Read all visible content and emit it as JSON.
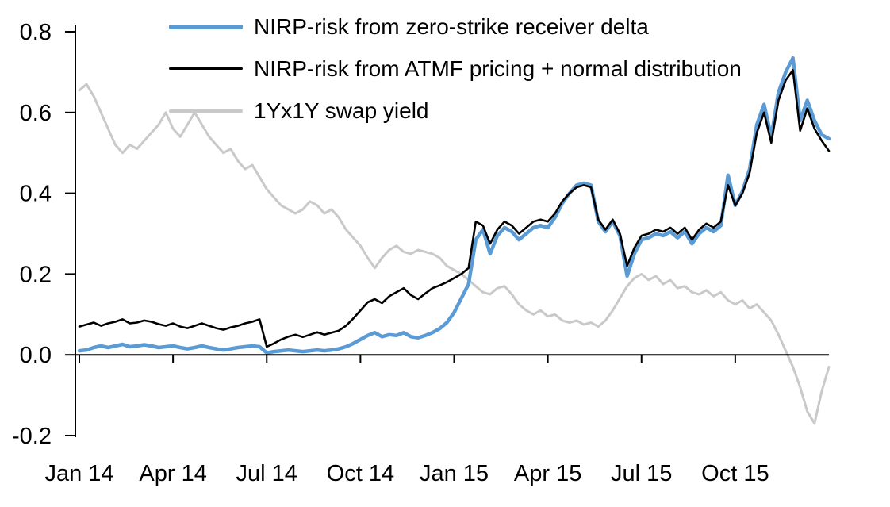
{
  "chart_data": {
    "type": "line",
    "title": "",
    "xlabel": "",
    "ylabel": "",
    "grid": false,
    "legend_position": "top-left",
    "xlim": [
      2014.0,
      2016.0
    ],
    "ylim": [
      -0.2,
      0.8
    ],
    "x_tick_labels": [
      "Jan 14",
      "Apr 14",
      "Jul 14",
      "Oct 14",
      "Jan 15",
      "Apr 15",
      "Jul 15",
      "Oct 15"
    ],
    "x_tick_positions": [
      2014.0,
      2014.25,
      2014.5,
      2014.75,
      2015.0,
      2015.25,
      2015.5,
      2015.75
    ],
    "y_tick_labels": [
      "-0.2",
      "0.0",
      "0.2",
      "0.4",
      "0.6",
      "0.8"
    ],
    "y_tick_values": [
      -0.2,
      0.0,
      0.2,
      0.4,
      0.6,
      0.8
    ],
    "x_sampling": {
      "start": 2014.0,
      "end": 2016.0,
      "points": 105,
      "spacing": "weekly"
    },
    "draw_order": [
      2,
      0,
      1
    ],
    "series": [
      {
        "id": "zero-strike-delta",
        "name": "NIRP-risk from zero-strike receiver delta",
        "color": "#5B9BD5",
        "stroke_width": 4.5,
        "legend_weight": 6,
        "values": [
          0.01,
          0.012,
          0.018,
          0.022,
          0.018,
          0.022,
          0.026,
          0.02,
          0.022,
          0.025,
          0.022,
          0.018,
          0.02,
          0.022,
          0.018,
          0.015,
          0.018,
          0.022,
          0.018,
          0.015,
          0.012,
          0.015,
          0.018,
          0.02,
          0.022,
          0.02,
          0.005,
          0.008,
          0.01,
          0.012,
          0.01,
          0.008,
          0.01,
          0.012,
          0.01,
          0.012,
          0.015,
          0.02,
          0.028,
          0.038,
          0.048,
          0.055,
          0.045,
          0.05,
          0.048,
          0.055,
          0.045,
          0.042,
          0.048,
          0.055,
          0.065,
          0.08,
          0.105,
          0.14,
          0.175,
          0.285,
          0.31,
          0.25,
          0.295,
          0.315,
          0.305,
          0.285,
          0.3,
          0.315,
          0.32,
          0.315,
          0.34,
          0.375,
          0.4,
          0.42,
          0.425,
          0.42,
          0.33,
          0.305,
          0.33,
          0.295,
          0.195,
          0.25,
          0.285,
          0.29,
          0.3,
          0.295,
          0.305,
          0.29,
          0.305,
          0.275,
          0.3,
          0.315,
          0.305,
          0.32,
          0.445,
          0.37,
          0.405,
          0.46,
          0.57,
          0.62,
          0.54,
          0.65,
          0.7,
          0.735,
          0.58,
          0.63,
          0.58,
          0.545,
          0.535
        ]
      },
      {
        "id": "atmf-normal",
        "name": "NIRP-risk from ATMF pricing + normal distribution",
        "color": "#000000",
        "stroke_width": 2.6,
        "legend_weight": 3,
        "values": [
          0.07,
          0.075,
          0.08,
          0.072,
          0.078,
          0.082,
          0.088,
          0.078,
          0.08,
          0.085,
          0.082,
          0.076,
          0.072,
          0.078,
          0.07,
          0.066,
          0.072,
          0.078,
          0.072,
          0.066,
          0.062,
          0.068,
          0.072,
          0.078,
          0.082,
          0.088,
          0.02,
          0.028,
          0.038,
          0.045,
          0.05,
          0.044,
          0.05,
          0.056,
          0.05,
          0.055,
          0.06,
          0.072,
          0.09,
          0.11,
          0.13,
          0.138,
          0.128,
          0.145,
          0.155,
          0.165,
          0.148,
          0.138,
          0.152,
          0.165,
          0.172,
          0.18,
          0.19,
          0.2,
          0.215,
          0.33,
          0.32,
          0.275,
          0.31,
          0.33,
          0.32,
          0.3,
          0.315,
          0.33,
          0.335,
          0.33,
          0.35,
          0.38,
          0.4,
          0.415,
          0.42,
          0.415,
          0.335,
          0.31,
          0.335,
          0.3,
          0.22,
          0.265,
          0.295,
          0.3,
          0.31,
          0.305,
          0.315,
          0.3,
          0.315,
          0.285,
          0.31,
          0.325,
          0.315,
          0.33,
          0.42,
          0.37,
          0.4,
          0.45,
          0.55,
          0.6,
          0.525,
          0.63,
          0.68,
          0.705,
          0.555,
          0.61,
          0.56,
          0.53,
          0.505
        ]
      },
      {
        "id": "swap-yield",
        "name": "1Yx1Y swap yield",
        "color": "#C9C9C9",
        "stroke_width": 3,
        "legend_weight": 4,
        "values": [
          0.655,
          0.67,
          0.64,
          0.6,
          0.56,
          0.52,
          0.5,
          0.52,
          0.51,
          0.53,
          0.55,
          0.57,
          0.6,
          0.56,
          0.54,
          0.57,
          0.6,
          0.57,
          0.54,
          0.52,
          0.5,
          0.51,
          0.48,
          0.46,
          0.47,
          0.44,
          0.41,
          0.39,
          0.37,
          0.36,
          0.35,
          0.36,
          0.38,
          0.37,
          0.35,
          0.36,
          0.34,
          0.31,
          0.29,
          0.27,
          0.24,
          0.215,
          0.24,
          0.26,
          0.27,
          0.255,
          0.25,
          0.26,
          0.255,
          0.25,
          0.24,
          0.22,
          0.21,
          0.2,
          0.185,
          0.17,
          0.155,
          0.15,
          0.165,
          0.17,
          0.15,
          0.125,
          0.11,
          0.1,
          0.11,
          0.095,
          0.1,
          0.085,
          0.08,
          0.085,
          0.075,
          0.08,
          0.07,
          0.085,
          0.11,
          0.14,
          0.17,
          0.19,
          0.2,
          0.185,
          0.195,
          0.175,
          0.185,
          0.165,
          0.17,
          0.155,
          0.15,
          0.16,
          0.145,
          0.155,
          0.135,
          0.125,
          0.135,
          0.115,
          0.125,
          0.105,
          0.085,
          0.05,
          0.01,
          -0.03,
          -0.08,
          -0.14,
          -0.17,
          -0.09,
          -0.03
        ]
      }
    ]
  }
}
